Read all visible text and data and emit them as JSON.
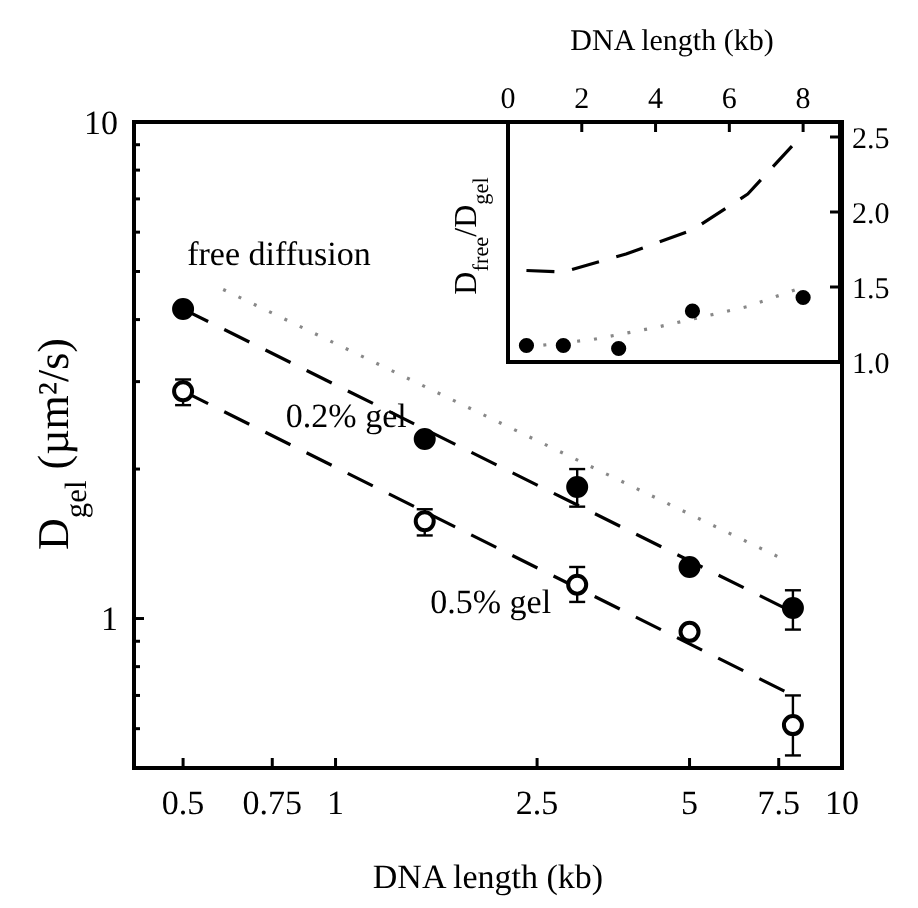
{
  "chart_data": [
    {
      "type": "scatter",
      "xlabel": "DNA length (kb)",
      "ylabel": "D$_{gel}$ (µm²/s)",
      "log": "xy",
      "xlim": [
        0.4,
        10
      ],
      "ylim": [
        0.5,
        10
      ],
      "xticks": [
        0.5,
        0.75,
        1,
        2.5,
        5,
        7.5,
        10
      ],
      "yticks": [
        {
          "value": 0.6,
          "label": null
        },
        {
          "value": 0.7,
          "label": null
        },
        {
          "value": 0.8,
          "label": null
        },
        {
          "value": 0.9,
          "label": null
        },
        1,
        {
          "value": 2,
          "label": null
        },
        {
          "value": 3,
          "label": null
        },
        {
          "value": 4,
          "label": null
        },
        {
          "value": 5,
          "label": null
        },
        {
          "value": 6,
          "label": null
        },
        {
          "value": 7,
          "label": null
        },
        {
          "value": 8,
          "label": null
        },
        {
          "value": 9,
          "label": null
        },
        10
      ],
      "series": [
        {
          "type": "line",
          "name": "free diffusion",
          "color": "#888888",
          "line_style": "dotted",
          "x": [
            0.6,
            7.5
          ],
          "values": [
            4.6,
            1.33
          ]
        },
        {
          "type": "line",
          "color": "#000000",
          "line_style": "dashed",
          "x": [
            0.5,
            8
          ],
          "values": [
            4.2,
            1.03
          ]
        },
        {
          "type": "line",
          "color": "#000000",
          "line_style": "dashed",
          "x": [
            0.5,
            8
          ],
          "values": [
            2.87,
            0.7
          ]
        },
        {
          "type": "scatter",
          "name": "0.2% gel",
          "color": "#000000",
          "marker": "circle",
          "x": [
            0.5,
            1.5,
            3,
            5,
            8
          ],
          "values": [
            4.2,
            2.3,
            1.84,
            1.27,
            1.05
          ],
          "errors": [
            null,
            null,
            [
              1.68,
              2.0
            ],
            null,
            [
              0.95,
              1.14
            ]
          ]
        },
        {
          "type": "scatter",
          "name": "0.5% gel",
          "color": "#ffffff",
          "marker": "circle",
          "x": [
            0.5,
            1.5,
            3,
            5,
            8
          ],
          "values": [
            2.87,
            1.57,
            1.17,
            0.94,
            0.61
          ],
          "errors": [
            [
              2.69,
              3.03
            ],
            [
              1.47,
              1.66
            ],
            [
              1.08,
              1.27
            ],
            null,
            [
              0.53,
              0.7
            ]
          ]
        }
      ]
    },
    {
      "type": "scatter",
      "xlabel": "DNA length (kb)",
      "ylabel": "D$_{free}$/D$_{gel}$",
      "xlim": [
        0,
        9
      ],
      "ylim": [
        1.0,
        2.6
      ],
      "xticks": [
        0,
        2,
        4,
        6,
        8
      ],
      "yticks": [
        {
          "value": 1,
          "label": "1.0"
        },
        {
          "value": 1.5,
          "label": "1.5"
        },
        {
          "value": 2,
          "label": "2.0"
        },
        {
          "value": 2.5,
          "label": "2.5"
        }
      ],
      "series": [
        {
          "type": "line",
          "color": "#000000",
          "line_style": "dashed",
          "x": [
            0.5,
            1.5,
            3.2,
            5,
            6.5,
            8
          ],
          "values": [
            1.61,
            1.6,
            1.72,
            1.88,
            2.12,
            2.52
          ]
        },
        {
          "type": "line",
          "color": "#888888",
          "line_style": "dotted",
          "x": [
            0.5,
            2.3,
            4,
            6.5,
            8
          ],
          "values": [
            1.1,
            1.15,
            1.23,
            1.37,
            1.5
          ]
        },
        {
          "type": "scatter",
          "color": "#000000",
          "marker": "circle",
          "x": [
            0.5,
            1.5,
            3,
            5,
            8
          ],
          "values": [
            1.11,
            1.11,
            1.09,
            1.34,
            1.43
          ]
        }
      ]
    }
  ]
}
